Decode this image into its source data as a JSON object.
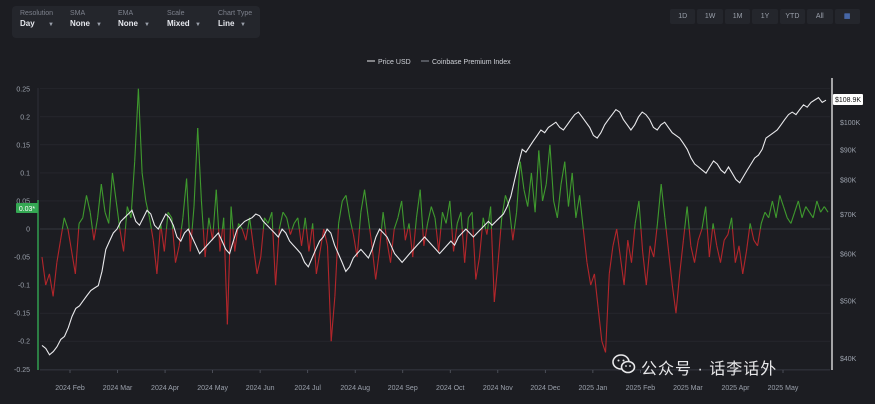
{
  "toolbar": {
    "resolution": {
      "label": "Resolution",
      "value": "Day"
    },
    "sma": {
      "label": "SMA",
      "value": "None"
    },
    "ema": {
      "label": "EMA",
      "value": "None"
    },
    "scale": {
      "label": "Scale",
      "value": "Mixed"
    },
    "chart_type": {
      "label": "Chart Type",
      "value": "Line"
    }
  },
  "ranges": [
    "1D",
    "1W",
    "1M",
    "1Y",
    "YTD",
    "All"
  ],
  "watermark": "公众号 · 话李话外",
  "colors": {
    "background": "#1c1d22",
    "positive": "#3f9a2e",
    "negative": "#b3262b",
    "price": "#e9e9ec",
    "accent": "#34a853"
  },
  "chart_data": {
    "type": "line",
    "legend": {
      "position": "top-center",
      "entries": [
        "Price USD",
        "Coinbase Premium Index"
      ]
    },
    "x_ticks": [
      "2024 Feb",
      "2024 Mar",
      "2024 Apr",
      "2024 May",
      "2024 Jun",
      "2024 Jul",
      "2024 Aug",
      "2024 Sep",
      "2024 Oct",
      "2024 Nov",
      "2024 Dec",
      "2025 Jan",
      "2025 Feb",
      "2025 Mar",
      "2025 Apr",
      "2025 May"
    ],
    "left_axis": {
      "ticks": [
        "0.25",
        "0.2",
        "0.15",
        "0.1",
        "0.05",
        "0",
        "-0.05",
        "-0.1",
        "-0.15",
        "-0.2",
        "-0.25"
      ],
      "range": [
        -0.25,
        0.25
      ]
    },
    "right_axis": {
      "ticks": [
        "$100K",
        "$90K",
        "$80K",
        "$70K",
        "$60K",
        "$50K",
        "$40K"
      ],
      "scale": "log",
      "range": [
        40000,
        112000
      ]
    },
    "current_labels": {
      "premium": "0.03*",
      "price": "$108.9K"
    },
    "series": [
      {
        "name": "Coinbase Premium Index",
        "values": [
          -0.05,
          -0.1,
          -0.08,
          -0.12,
          -0.06,
          -0.02,
          0.02,
          0.0,
          -0.04,
          -0.08,
          0.01,
          0.02,
          0.06,
          0.03,
          -0.02,
          0.02,
          0.08,
          0.03,
          0.01,
          0.1,
          0.05,
          0.0,
          -0.04,
          0.04,
          0.02,
          0.12,
          0.25,
          0.1,
          0.05,
          0.02,
          -0.02,
          -0.08,
          0.01,
          -0.04,
          0.03,
          0.02,
          -0.06,
          -0.03,
          0.02,
          0.09,
          -0.04,
          0.04,
          0.18,
          0.05,
          -0.05,
          0.02,
          -0.02,
          0.07,
          -0.04,
          0.02,
          -0.17,
          0.04,
          -0.04,
          0.01,
          0.0,
          -0.02,
          0.02,
          -0.03,
          -0.08,
          -0.05,
          0.02,
          0.01,
          0.03,
          -0.1,
          0.0,
          0.03,
          0.02,
          -0.01,
          0.01,
          0.02,
          -0.03,
          0.02,
          -0.04,
          0.01,
          -0.08,
          -0.04,
          0.0,
          -0.03,
          -0.2,
          -0.12,
          0.01,
          0.05,
          0.06,
          0.02,
          -0.01,
          -0.05,
          0.03,
          0.07,
          0.02,
          -0.03,
          -0.09,
          -0.04,
          0.03,
          -0.02,
          -0.06,
          0.0,
          0.02,
          0.05,
          -0.02,
          0.01,
          -0.05,
          0.02,
          0.07,
          -0.03,
          0.01,
          0.04,
          0.02,
          -0.04,
          0.03,
          0.01,
          0.05,
          -0.04,
          0.01,
          0.03,
          -0.06,
          0.02,
          0.03,
          -0.09,
          -0.05,
          0.02,
          -0.01,
          0.04,
          -0.13,
          -0.06,
          0.02,
          0.06,
          0.04,
          -0.02,
          0.03,
          0.12,
          0.07,
          0.04,
          0.1,
          0.03,
          0.14,
          0.05,
          0.08,
          0.15,
          0.05,
          0.02,
          0.08,
          0.12,
          0.04,
          0.1,
          0.02,
          0.06,
          0.0,
          -0.06,
          -0.1,
          -0.08,
          -0.14,
          -0.2,
          -0.22,
          -0.08,
          -0.03,
          0.0,
          -0.05,
          -0.1,
          -0.02,
          -0.06,
          0.01,
          0.05,
          -0.04,
          -0.1,
          -0.03,
          -0.05,
          0.01,
          0.08,
          0.02,
          -0.04,
          -0.1,
          -0.15,
          -0.08,
          -0.02,
          0.04,
          -0.03,
          -0.06,
          -0.02,
          0.0,
          0.04,
          -0.05,
          0.01,
          -0.03,
          -0.06,
          -0.02,
          -0.01,
          0.02,
          -0.06,
          -0.03,
          -0.08,
          -0.04,
          0.01,
          -0.02,
          -0.03,
          0.01,
          0.03,
          0.02,
          0.05,
          0.02,
          0.06,
          0.04,
          0.02,
          0.01,
          0.03,
          0.05,
          0.02,
          0.04,
          0.03,
          0.02,
          0.05,
          0.03,
          0.04,
          0.03
        ]
      },
      {
        "name": "Price USD",
        "values": [
          42000,
          41500,
          40500,
          41000,
          41800,
          43000,
          43500,
          45000,
          47000,
          48500,
          49000,
          50000,
          51000,
          52000,
          52500,
          53000,
          56000,
          61000,
          63000,
          65000,
          66000,
          68000,
          69000,
          70000,
          71000,
          68000,
          67000,
          69000,
          71000,
          70000,
          67000,
          66000,
          68000,
          70000,
          69000,
          67000,
          64000,
          63000,
          65000,
          66000,
          64000,
          62000,
          60000,
          61000,
          62000,
          63000,
          64000,
          65000,
          63000,
          61000,
          60000,
          63000,
          66000,
          67000,
          68000,
          68500,
          69000,
          70000,
          69500,
          68000,
          67000,
          66000,
          65000,
          64000,
          66000,
          65000,
          63000,
          62000,
          61000,
          60000,
          58000,
          57000,
          59000,
          61000,
          63000,
          64000,
          66000,
          65000,
          62000,
          60000,
          58000,
          56000,
          57000,
          59000,
          60000,
          61000,
          60000,
          59000,
          61000,
          64000,
          66000,
          65000,
          64000,
          62000,
          60000,
          59000,
          58000,
          59000,
          60000,
          61000,
          62000,
          63000,
          64000,
          63000,
          62000,
          61000,
          60000,
          61000,
          62000,
          63000,
          62000,
          64000,
          65000,
          66000,
          65000,
          64000,
          65000,
          66000,
          67000,
          68000,
          67000,
          68000,
          69000,
          70000,
          72000,
          75000,
          80000,
          85000,
          90000,
          89000,
          91000,
          93000,
          95000,
          97000,
          96000,
          98000,
          99000,
          100000,
          98000,
          97000,
          99000,
          101000,
          103000,
          104000,
          102000,
          100000,
          98000,
          95000,
          94000,
          96000,
          99000,
          101000,
          103000,
          105000,
          104000,
          101000,
          99000,
          97000,
          99000,
          102000,
          104000,
          103000,
          101000,
          98000,
          97000,
          99000,
          100000,
          98000,
          96000,
          95000,
          94000,
          92000,
          90000,
          87000,
          85000,
          84000,
          83000,
          82000,
          84000,
          86000,
          85000,
          83000,
          82000,
          84000,
          82000,
          80000,
          79000,
          81000,
          83000,
          85000,
          87000,
          88000,
          90000,
          94000,
          95000,
          96000,
          97000,
          99000,
          101000,
          103000,
          104000,
          103000,
          105000,
          107000,
          106000,
          108000,
          109000,
          110000,
          108000,
          108900
        ]
      }
    ]
  }
}
